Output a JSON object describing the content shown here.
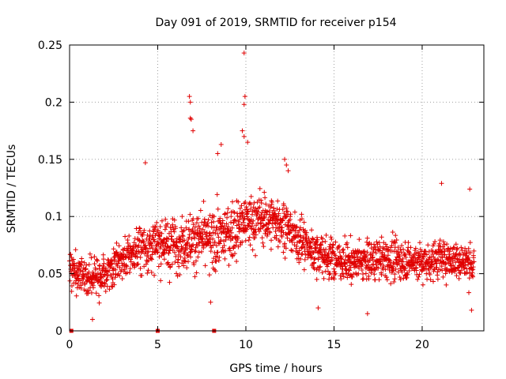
{
  "chart_data": {
    "type": "scatter",
    "title": "Day 091 of 2019, SRMTID for receiver p154",
    "xlabel": "GPS time / hours",
    "ylabel": "SRMTID / TECUs",
    "xlim": [
      0,
      23.5
    ],
    "ylim": [
      0,
      0.25
    ],
    "xticks": [
      0,
      5,
      10,
      15,
      20
    ],
    "yticks": [
      0,
      0.05,
      0.1,
      0.15,
      0.2,
      0.25
    ],
    "ytick_labels": [
      "0",
      "0.05",
      "0.1",
      "0.15",
      "0.2",
      "0.25"
    ],
    "grid": true,
    "marker": "+",
    "color": "#e00000",
    "trend_hours": [
      0,
      1,
      2,
      3,
      4,
      5,
      6,
      7,
      8,
      9,
      10,
      11,
      12,
      13,
      14,
      15,
      16,
      17,
      18,
      19,
      20,
      21,
      22,
      23
    ],
    "trend_mean": [
      0.055,
      0.045,
      0.05,
      0.062,
      0.072,
      0.075,
      0.076,
      0.08,
      0.078,
      0.085,
      0.095,
      0.098,
      0.095,
      0.08,
      0.068,
      0.062,
      0.06,
      0.062,
      0.063,
      0.062,
      0.06,
      0.063,
      0.062,
      0.058
    ],
    "trend_spread": [
      0.015,
      0.016,
      0.017,
      0.018,
      0.022,
      0.022,
      0.024,
      0.025,
      0.025,
      0.026,
      0.024,
      0.024,
      0.022,
      0.02,
      0.018,
      0.018,
      0.018,
      0.017,
      0.017,
      0.017,
      0.017,
      0.017,
      0.017,
      0.017
    ],
    "sample_interval_hours": 0.0117,
    "data_span_hours": [
      0,
      22.95
    ],
    "highlights": [
      {
        "x": 9.9,
        "y": 0.243
      },
      {
        "x": 6.8,
        "y": 0.205
      },
      {
        "x": 6.85,
        "y": 0.2
      },
      {
        "x": 9.95,
        "y": 0.205
      },
      {
        "x": 9.9,
        "y": 0.198
      },
      {
        "x": 6.85,
        "y": 0.186
      },
      {
        "x": 6.9,
        "y": 0.185
      },
      {
        "x": 9.8,
        "y": 0.175
      },
      {
        "x": 9.9,
        "y": 0.17
      },
      {
        "x": 7.0,
        "y": 0.175
      },
      {
        "x": 10.1,
        "y": 0.165
      },
      {
        "x": 8.6,
        "y": 0.163
      },
      {
        "x": 8.4,
        "y": 0.155
      },
      {
        "x": 4.3,
        "y": 0.147
      },
      {
        "x": 12.2,
        "y": 0.15
      },
      {
        "x": 12.4,
        "y": 0.14
      },
      {
        "x": 12.3,
        "y": 0.145
      },
      {
        "x": 21.1,
        "y": 0.129
      },
      {
        "x": 22.7,
        "y": 0.124
      },
      {
        "x": 1.3,
        "y": 0.01
      },
      {
        "x": 16.9,
        "y": 0.015
      },
      {
        "x": 22.8,
        "y": 0.018
      },
      {
        "x": 8.0,
        "y": 0.025
      },
      {
        "x": 14.1,
        "y": 0.02
      }
    ],
    "baseline_markers": [
      0.1,
      5.0,
      8.2
    ]
  }
}
